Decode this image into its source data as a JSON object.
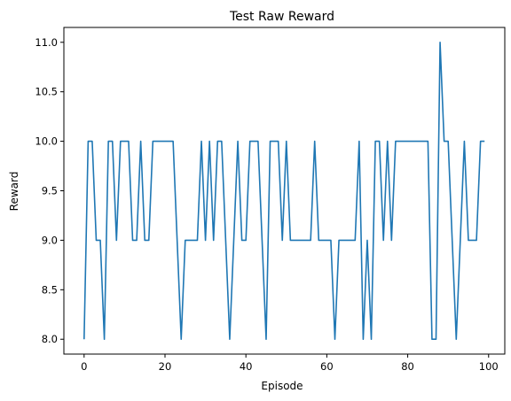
{
  "chart_data": {
    "type": "line",
    "title": "Test Raw Reward",
    "xlabel": "Episode",
    "ylabel": "Reward",
    "xlim": [
      -5,
      104
    ],
    "ylim": [
      7.85,
      11.15
    ],
    "xticks": [
      0,
      20,
      40,
      60,
      80,
      100
    ],
    "yticks": [
      8.0,
      8.5,
      9.0,
      9.5,
      10.0,
      10.5,
      11.0
    ],
    "xtick_labels": [
      "0",
      "20",
      "40",
      "60",
      "80",
      "100"
    ],
    "ytick_labels": [
      "8.0",
      "8.5",
      "9.0",
      "9.5",
      "10.0",
      "10.5",
      "11.0"
    ],
    "grid": false,
    "legend": "none",
    "series": [
      {
        "color": "#1f77b4",
        "x": [
          0,
          1,
          2,
          3,
          4,
          5,
          6,
          7,
          8,
          9,
          10,
          11,
          12,
          13,
          14,
          15,
          16,
          17,
          18,
          19,
          20,
          21,
          22,
          23,
          24,
          25,
          26,
          27,
          28,
          29,
          30,
          31,
          32,
          33,
          34,
          35,
          36,
          37,
          38,
          39,
          40,
          41,
          42,
          43,
          44,
          45,
          46,
          47,
          48,
          49,
          50,
          51,
          52,
          53,
          54,
          55,
          56,
          57,
          58,
          59,
          60,
          61,
          62,
          63,
          64,
          65,
          66,
          67,
          68,
          69,
          70,
          71,
          72,
          73,
          74,
          75,
          76,
          77,
          78,
          79,
          80,
          81,
          82,
          83,
          84,
          85,
          86,
          87,
          88,
          89,
          90,
          91,
          92,
          93,
          94,
          95,
          96,
          97,
          98,
          99
        ],
        "values": [
          8,
          10,
          10,
          9,
          9,
          8,
          10,
          10,
          9,
          10,
          10,
          10,
          9,
          9,
          10,
          9,
          9,
          10,
          10,
          10,
          10,
          10,
          10,
          9,
          8,
          9,
          9,
          9,
          9,
          10,
          9,
          10,
          9,
          10,
          10,
          9,
          8,
          9,
          10,
          9,
          9,
          10,
          10,
          10,
          9,
          8,
          10,
          10,
          10,
          9,
          10,
          9,
          9,
          9,
          9,
          9,
          9,
          10,
          9,
          9,
          9,
          9,
          8,
          9,
          9,
          9,
          9,
          9,
          10,
          8,
          9,
          8,
          10,
          10,
          9,
          10,
          9,
          10,
          10,
          10,
          10,
          10,
          10,
          10,
          10,
          10,
          8,
          8,
          11,
          10,
          10,
          9,
          8,
          9,
          10,
          9,
          9,
          9,
          10,
          10
        ]
      }
    ]
  }
}
